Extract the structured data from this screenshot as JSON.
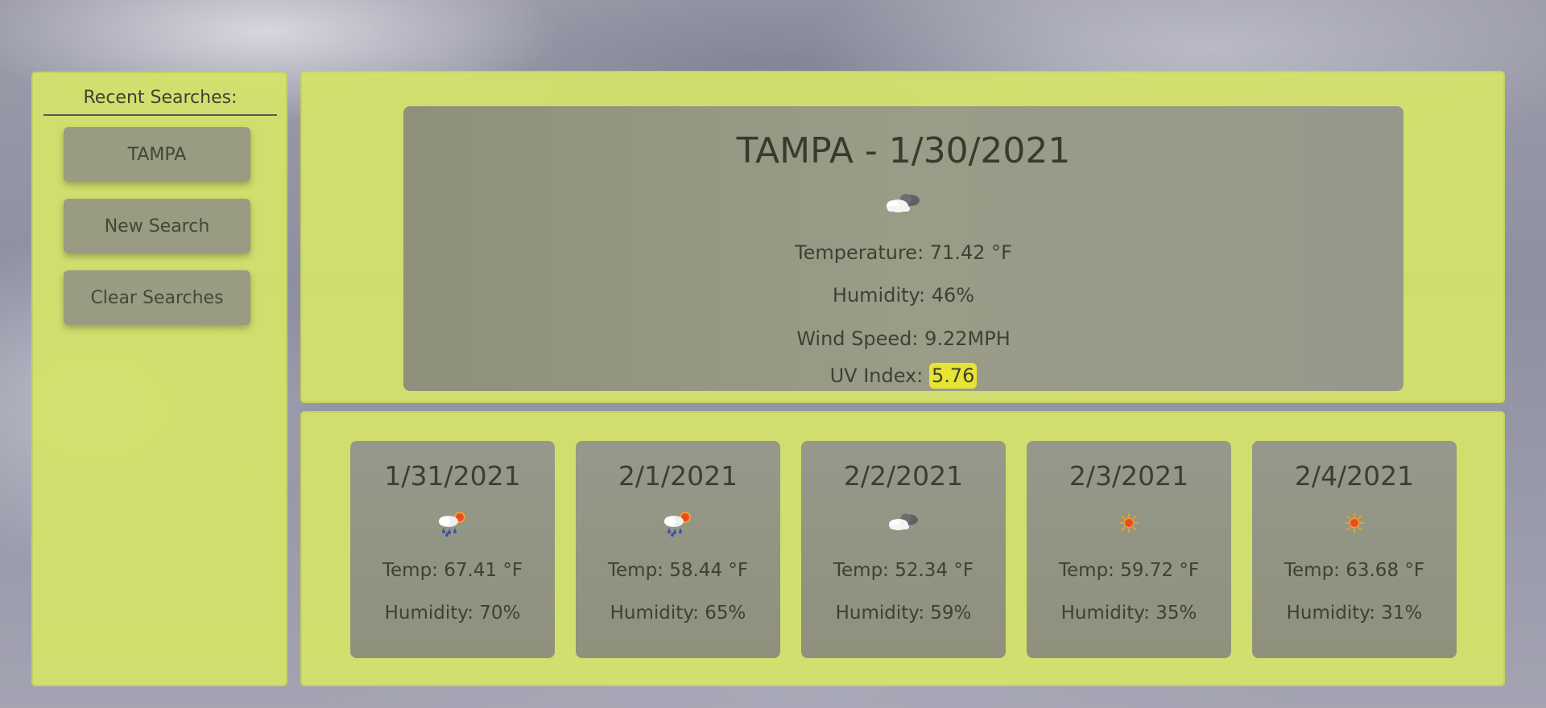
{
  "sidebar": {
    "title": "Recent Searches:",
    "buttons": {
      "recent_city": "TAMPA",
      "new_search": "New Search",
      "clear_searches": "Clear Searches"
    }
  },
  "current": {
    "title": "TAMPA - 1/30/2021",
    "icon": "cloudy-icon",
    "temperature_label": "Temperature: 71.42 °F",
    "humidity_label": "Humidity: 46%",
    "wind_label": "Wind Speed: 9.22MPH",
    "uv_label": "UV Index: ",
    "uv_value": "5.76",
    "uv_color": "#e8e433"
  },
  "forecast": [
    {
      "date": "1/31/2021",
      "icon": "rain-sun-icon",
      "temp": "Temp: 67.41 °F",
      "humidity": "Humidity: 70%"
    },
    {
      "date": "2/1/2021",
      "icon": "rain-sun-icon",
      "temp": "Temp: 58.44 °F",
      "humidity": "Humidity: 65%"
    },
    {
      "date": "2/2/2021",
      "icon": "cloudy-icon",
      "temp": "Temp: 52.34 °F",
      "humidity": "Humidity: 59%"
    },
    {
      "date": "2/3/2021",
      "icon": "sun-icon",
      "temp": "Temp: 59.72 °F",
      "humidity": "Humidity: 35%"
    },
    {
      "date": "2/4/2021",
      "icon": "sun-icon",
      "temp": "Temp: 63.68 °F",
      "humidity": "Humidity: 31%"
    }
  ],
  "colors": {
    "panel": "#d5e269",
    "card": "#96988a",
    "button": "#999b82"
  }
}
